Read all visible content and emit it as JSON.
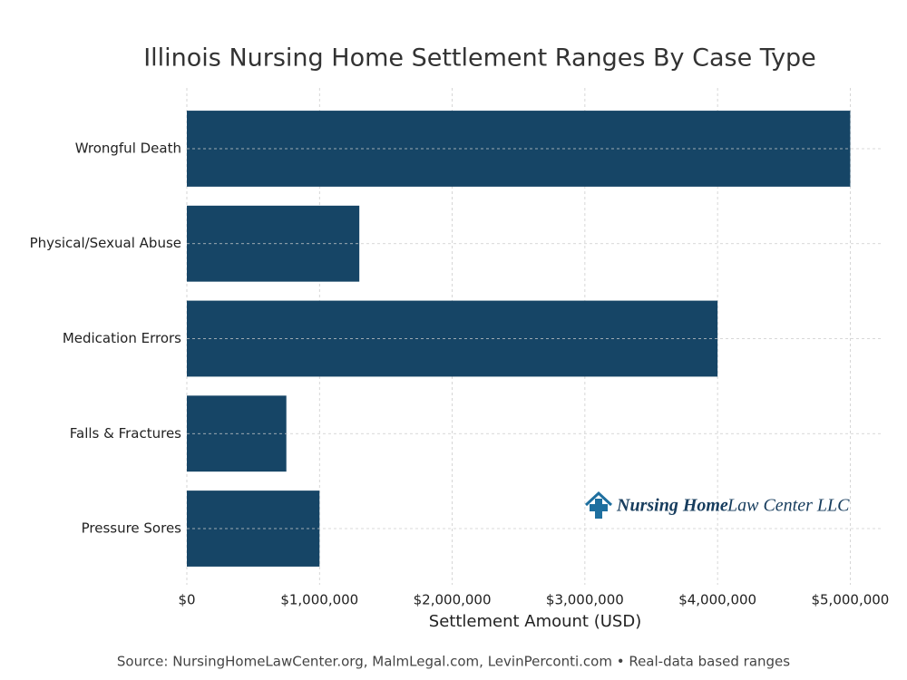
{
  "chart_data": {
    "type": "barh",
    "title": "Illinois Nursing Home Settlement Ranges By Case Type",
    "x_label": "Settlement Amount (USD)",
    "source": "Source: NursingHomeLawCenter.org, MalmLegal.com, LevinPerconti.com • Real-data based ranges",
    "logo": {
      "bold": "Nursing Home",
      "rest": "Law Center LLC"
    },
    "categories": [
      "Wrongful Death",
      "Physical/Sexual Abuse",
      "Medication Errors",
      "Falls & Fractures",
      "Pressure Sores"
    ],
    "values": [
      5000000,
      1300000,
      4000000,
      750000,
      1000000
    ],
    "color": "#164566",
    "xlim": [
      0,
      5250000
    ],
    "xticks": [
      {
        "value": 0,
        "label": "$0"
      },
      {
        "value": 1000000,
        "label": "$1,000,000"
      },
      {
        "value": 2000000,
        "label": "$2,000,000"
      },
      {
        "value": 3000000,
        "label": "$3,000,000"
      },
      {
        "value": 4000000,
        "label": "$4,000,000"
      },
      {
        "value": 5000000,
        "label": "$5,000,000"
      }
    ],
    "grid": true
  }
}
